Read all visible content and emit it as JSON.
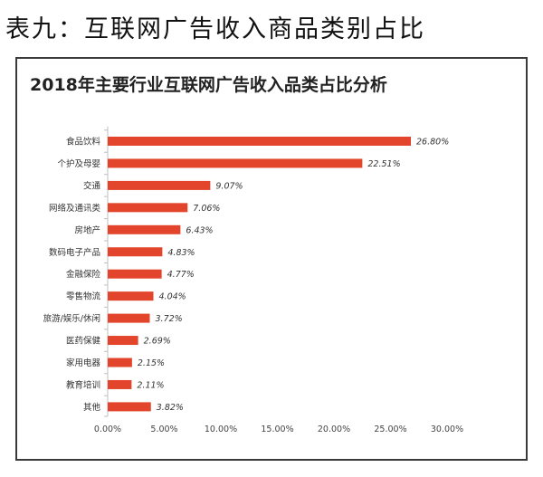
{
  "page_heading": "表九：互联网广告收入商品类别占比",
  "chart_data": {
    "type": "bar",
    "orientation": "horizontal",
    "title": "2018年主要行业互联网广告收入品类占比分析",
    "xlabel": "",
    "ylabel": "",
    "xlim": [
      0,
      30
    ],
    "xticks": [
      0,
      5,
      10,
      15,
      20,
      25,
      30
    ],
    "xtick_labels": [
      "0.00%",
      "5.00%",
      "10.00%",
      "15.00%",
      "20.00%",
      "25.00%",
      "30.00%"
    ],
    "categories": [
      "食品饮料",
      "个护及母婴",
      "交通",
      "网络及通讯类",
      "房地产",
      "数码电子产品",
      "金融保险",
      "零售物流",
      "旅游/娱乐/休闲",
      "医药保健",
      "家用电器",
      "教育培训",
      "其他"
    ],
    "values": [
      26.8,
      22.51,
      9.07,
      7.06,
      6.43,
      4.83,
      4.77,
      4.04,
      3.72,
      2.69,
      2.15,
      2.11,
      3.82
    ],
    "value_labels": [
      "26.80%",
      "22.51%",
      "9.07%",
      "7.06%",
      "6.43%",
      "4.83%",
      "4.77%",
      "4.04%",
      "3.72%",
      "2.69%",
      "2.15%",
      "2.11%",
      "3.82%"
    ],
    "bar_color": "#e2452b",
    "grid": false
  }
}
